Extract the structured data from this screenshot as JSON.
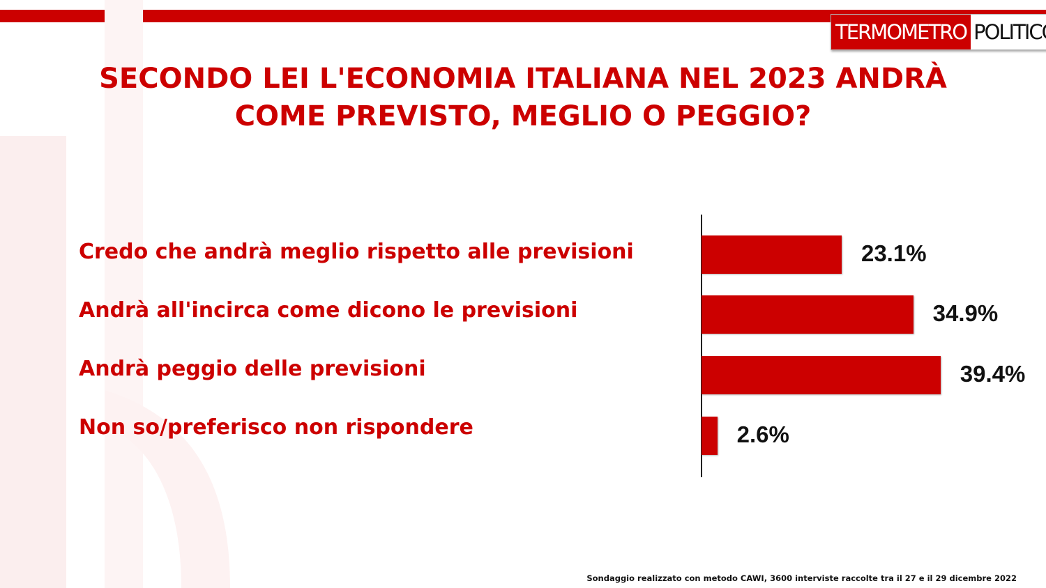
{
  "logo": {
    "part1": "TERMOMETRO",
    "part2": "POLITICO"
  },
  "colors": {
    "brand": "#cc0000",
    "bar": "#cc0000",
    "text_dark": "#111111"
  },
  "chart_data": {
    "type": "bar",
    "orientation": "horizontal",
    "title": "SECONDO LEI L'ECONOMIA ITALIANA NEL 2023 ANDRÀ COME PREVISTO, MEGLIO O PEGGIO?",
    "title_lines": [
      "SECONDO LEI L'ECONOMIA ITALIANA NEL 2023 ANDRÀ",
      "COME PREVISTO, MEGLIO O PEGGIO?"
    ],
    "categories": [
      "Credo che andrà  meglio rispetto alle previsioni",
      "Andrà  all'incirca come dicono le previsioni",
      "Andrà  peggio delle previsioni",
      "Non so/preferisco non rispondere"
    ],
    "values": [
      23.1,
      34.9,
      39.4,
      2.6
    ],
    "value_labels": [
      "23.1%",
      "34.9%",
      "39.4%",
      "2.6%"
    ],
    "unit": "%",
    "grid": false,
    "legend": "none"
  },
  "footnote": "Sondaggio realizzato con metodo CAWI, 3600 interviste raccolte tra il 27 e il 29 dicembre 2022"
}
